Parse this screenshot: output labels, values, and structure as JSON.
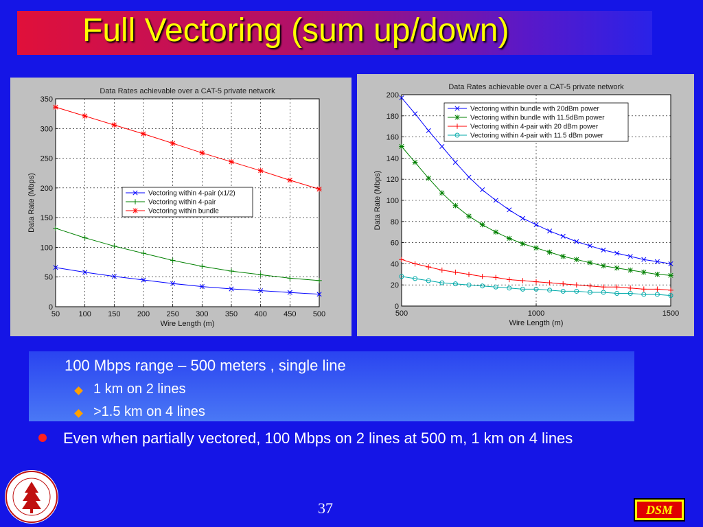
{
  "title": "Full Vectoring (sum up/down)",
  "colors": {
    "background": "#1515e6",
    "title": "#ffff00",
    "blue": "#0000ff",
    "green": "#008000",
    "red": "#ff0000",
    "cyan": "#00aaaa"
  },
  "chart_data": [
    {
      "type": "line",
      "title": "Data Rates achievable over a CAT-5 private network",
      "xlabel": "Wire Length (m)",
      "ylabel": "Data Rate (Mbps)",
      "xlim": [
        50,
        500
      ],
      "ylim": [
        0,
        350
      ],
      "xticks": [
        50,
        100,
        150,
        200,
        250,
        300,
        350,
        400,
        450,
        500
      ],
      "yticks": [
        0,
        50,
        100,
        150,
        200,
        250,
        300,
        350
      ],
      "grid": true,
      "legend_position": "center-right",
      "x": [
        50,
        100,
        150,
        200,
        250,
        300,
        350,
        400,
        450,
        500
      ],
      "series": [
        {
          "name": "Vectoring within 4-pair (x1/2)",
          "color": "#0000ff",
          "marker": "x",
          "values": [
            66,
            58,
            51,
            45,
            39,
            34,
            30,
            27,
            24,
            21
          ]
        },
        {
          "name": "Vectoring within 4-pair",
          "color": "#008000",
          "marker": "+",
          "values": [
            132,
            116,
            102,
            90,
            78,
            68,
            60,
            54,
            48,
            44
          ]
        },
        {
          "name": "Vectoring within bundle",
          "color": "#ff0000",
          "marker": "*",
          "values": [
            336,
            321,
            306,
            291,
            275,
            259,
            244,
            229,
            213,
            198
          ]
        }
      ]
    },
    {
      "type": "line",
      "title": "Data Rates achievable over a CAT-5 private network",
      "xlabel": "Wire Length (m)",
      "ylabel": "Data Rate (Mbps)",
      "xlim": [
        500,
        1500
      ],
      "ylim": [
        0,
        200
      ],
      "xticks": [
        500,
        1000,
        1500
      ],
      "yticks": [
        0,
        20,
        40,
        60,
        80,
        100,
        120,
        140,
        160,
        180,
        200
      ],
      "grid": true,
      "legend_position": "top-right",
      "x": [
        500,
        550,
        600,
        650,
        700,
        750,
        800,
        850,
        900,
        950,
        1000,
        1050,
        1100,
        1150,
        1200,
        1250,
        1300,
        1350,
        1400,
        1450,
        1500
      ],
      "series": [
        {
          "name": "Vectoring within bundle with 20dBm power",
          "color": "#0000ff",
          "marker": "x",
          "values": [
            197,
            182,
            166,
            151,
            136,
            122,
            110,
            100,
            91,
            83,
            77,
            71,
            66,
            61,
            57,
            53,
            50,
            47,
            44,
            42,
            40
          ]
        },
        {
          "name": "Vectoring within bundle with 11.5dBm power",
          "color": "#008000",
          "marker": "*",
          "values": [
            151,
            136,
            121,
            107,
            95,
            85,
            77,
            70,
            64,
            59,
            55,
            51,
            47,
            44,
            41,
            38,
            36,
            34,
            32,
            30,
            29
          ]
        },
        {
          "name": "Vectoring within 4-pair with 20 dBm power",
          "color": "#ff0000",
          "marker": "+",
          "values": [
            44,
            40,
            37,
            34,
            32,
            30,
            28,
            27,
            25,
            24,
            23,
            22,
            21,
            20,
            19,
            18,
            18,
            17,
            16,
            16,
            15
          ]
        },
        {
          "name": "Vectoring within 4-pair with 11.5 dBm power",
          "color": "#00aaaa",
          "marker": "o",
          "values": [
            28,
            26,
            24,
            22,
            21,
            20,
            19,
            18,
            17,
            16,
            16,
            15,
            14,
            14,
            13,
            13,
            12,
            12,
            11,
            11,
            10
          ]
        }
      ]
    }
  ],
  "bullets": {
    "main": "100 Mbps range – 500 meters , single line",
    "sub1": "1 km on 2 lines",
    "sub2": ">1.5 km on 4 lines",
    "para": "Even when partially vectored, 100 Mbps on 2 lines at 500 m, 1 km on 4 lines"
  },
  "page_number": "37",
  "logo_text": "DSM",
  "seal_text": "LELAND STANFORD JUNIOR UNIVERSITY"
}
